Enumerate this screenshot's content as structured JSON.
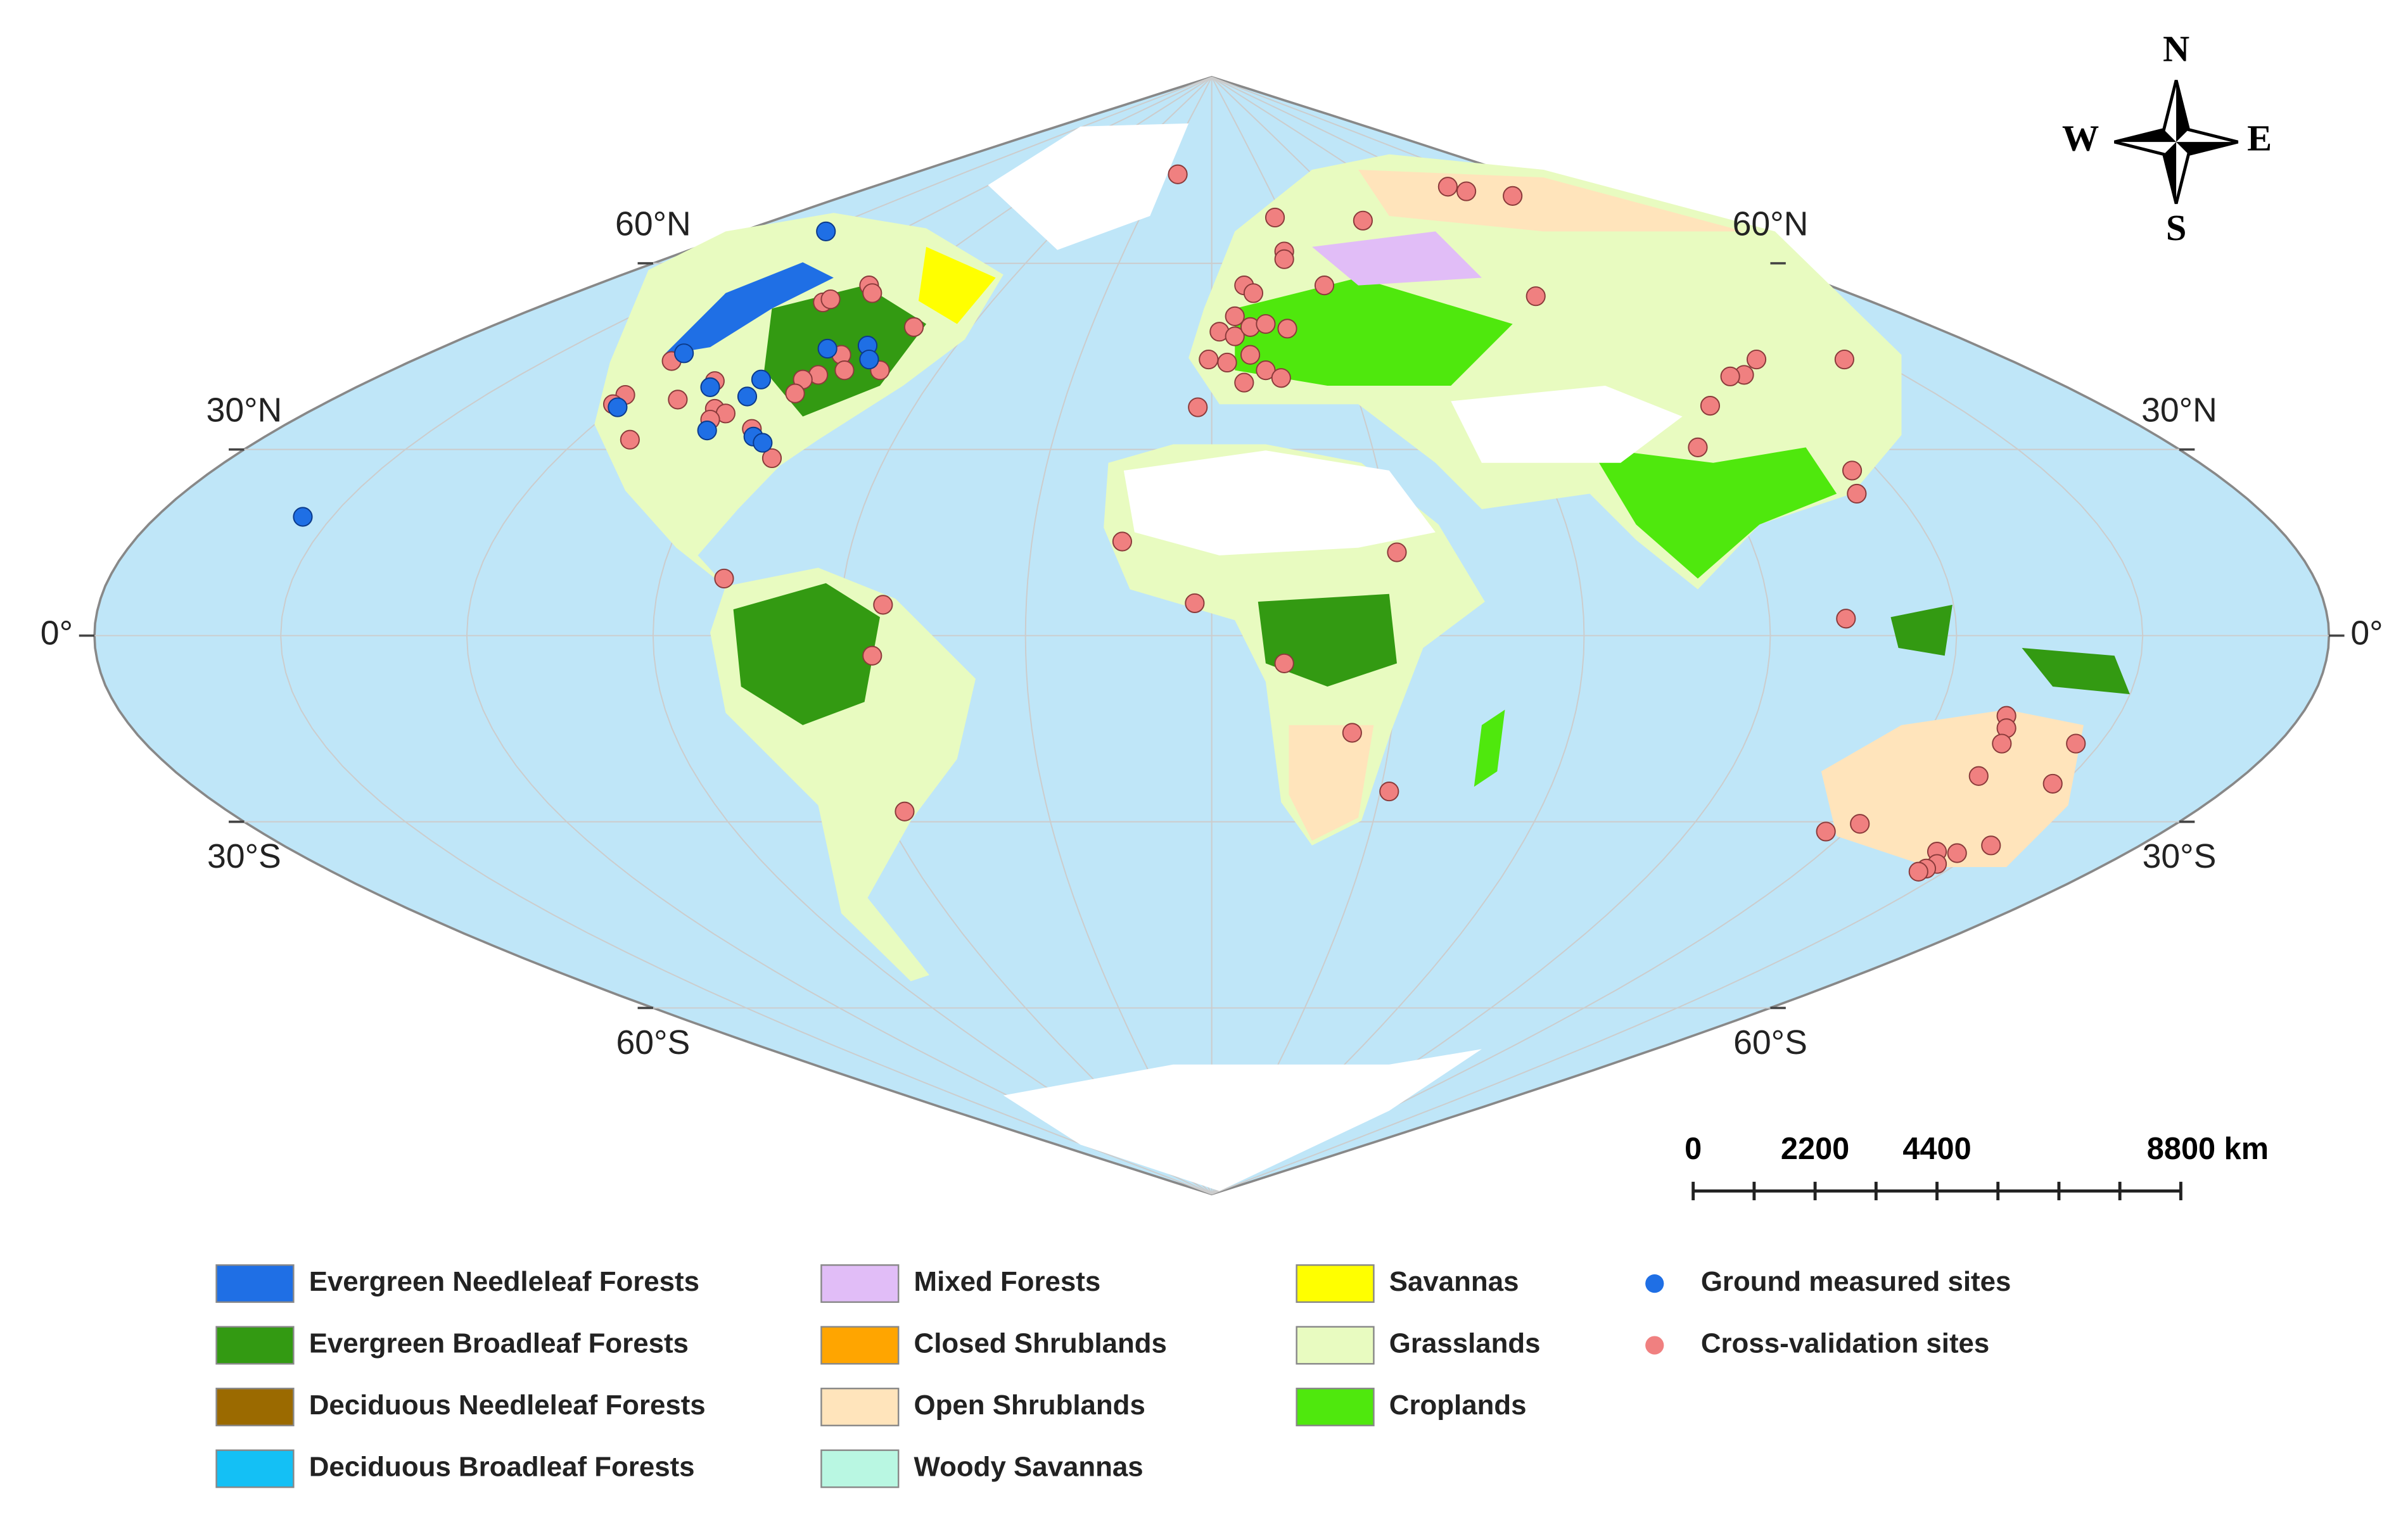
{
  "graticule_labels": {
    "left": [
      "60°N",
      "30°N",
      "0°",
      "30°S",
      "60°S"
    ],
    "right": [
      "60°N",
      "30°N",
      "0°",
      "30°S",
      "60°S"
    ]
  },
  "compass": {
    "north": "N",
    "south": "S",
    "west": "W",
    "east": "E"
  },
  "scale_bar": {
    "labels": [
      "0",
      "2200",
      "4400",
      "8800 km"
    ]
  },
  "legend": [
    {
      "label": "Evergreen Needleleaf Forests",
      "color": "#1f6fe5",
      "shape": "box"
    },
    {
      "label": "Evergreen Broadleaf Forests",
      "color": "#339a12",
      "shape": "box"
    },
    {
      "label": "Deciduous Needleleaf Forests",
      "color": "#9b6a00",
      "shape": "box"
    },
    {
      "label": "Deciduous Broadleaf Forests",
      "color": "#14c0f5",
      "shape": "box"
    },
    {
      "label": "Mixed Forests",
      "color": "#e1bdf7",
      "shape": "box"
    },
    {
      "label": "Closed Shrublands",
      "color": "#ffa500",
      "shape": "box"
    },
    {
      "label": "Open Shrublands",
      "color": "#ffe4bb",
      "shape": "box"
    },
    {
      "label": "Woody Savannas",
      "color": "#b9f7e2",
      "shape": "box"
    },
    {
      "label": "Savannas",
      "color": "#ffff00",
      "shape": "box"
    },
    {
      "label": "Grasslands",
      "color": "#e8fbc0",
      "shape": "box"
    },
    {
      "label": "Croplands",
      "color": "#4fe80d",
      "shape": "box"
    },
    {
      "label": "Ground measured sites",
      "color": "#1f6fe5",
      "shape": "dot"
    },
    {
      "label": "Cross-validation sites",
      "color": "#f08080",
      "shape": "dot"
    }
  ]
}
